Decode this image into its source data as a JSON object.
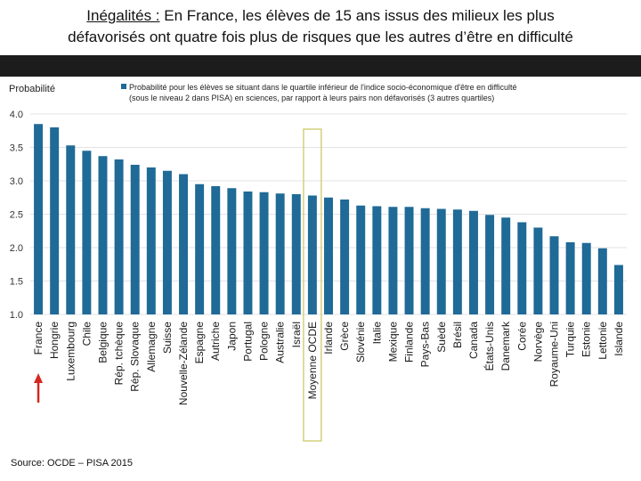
{
  "slide": {
    "title_lead": "Inégalités :",
    "title_rest_line1": " En France, les élèves de 15 ans issus des milieux les plus",
    "title_line2": "défavorisés ont quatre fois plus de risques que les autres d’être en difficulté",
    "source": "Source: OCDE – PISA 2015"
  },
  "colors": {
    "bar": "#1f6a97",
    "highlight_box": "#d4d07a",
    "arrow": "#d6281e",
    "band": "#1c1c1c"
  },
  "chart_data": {
    "type": "bar",
    "ylabel": "Probabilité",
    "legend": "Probabilité pour les élèves se situant dans le quartile inférieur de l'indice socio-économique d'être en difficulté (sous le niveau 2 dans PISA) en sciences, par rapport à leurs pairs non défavorisés (3 autres quartiles)",
    "legend_line1": "Probabilité pour les élèves se situant dans le quartile inférieur de l'indice socio-économique d'être en difficulté",
    "legend_line2": "(sous le niveau 2 dans PISA) en sciences, par rapport à leurs pairs non défavorisés (3 autres quartiles)",
    "legend_placement": "top",
    "ylim": [
      1.0,
      4.0
    ],
    "yticks": [
      1.0,
      1.5,
      2.0,
      2.5,
      3.0,
      3.5,
      4.0
    ],
    "ytick_labels": [
      "1.0",
      "1.5",
      "2.0",
      "2.5",
      "3.0",
      "3.5",
      "4.0"
    ],
    "highlighted_category": "Moyenne OCDE",
    "arrow_category": "France",
    "categories": [
      "France",
      "Hongrie",
      "Luxembourg",
      "Chile",
      "Belgique",
      "Rép. tchèque",
      "Rép. Slovaque",
      "Allemagne",
      "Suisse",
      "Nouvelle-Zélande",
      "Espagne",
      "Autriche",
      "Japon",
      "Portugal",
      "Pologne",
      "Australie",
      "Israël",
      "Moyenne OCDE",
      "Irlande",
      "Grèce",
      "Slovénie",
      "Italie",
      "Mexique",
      "Finlande",
      "Pays-Bas",
      "Suède",
      "Brésil",
      "Canada",
      "États-Unis",
      "Danemark",
      "Corée",
      "Norvège",
      "Royaume-Uni",
      "Turquie",
      "Estonie",
      "Lettonie",
      "Islande"
    ],
    "values": [
      3.85,
      3.8,
      3.53,
      3.45,
      3.37,
      3.32,
      3.24,
      3.2,
      3.15,
      3.1,
      2.95,
      2.92,
      2.89,
      2.84,
      2.83,
      2.81,
      2.8,
      2.78,
      2.75,
      2.72,
      2.63,
      2.62,
      2.61,
      2.61,
      2.59,
      2.58,
      2.57,
      2.55,
      2.49,
      2.45,
      2.38,
      2.3,
      2.17,
      2.08,
      2.07,
      1.99,
      1.74
    ]
  }
}
